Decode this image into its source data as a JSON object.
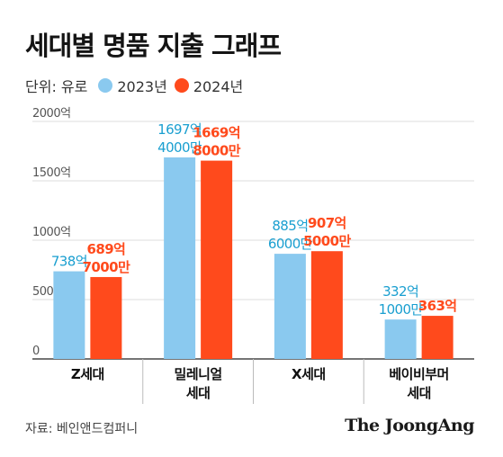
{
  "title": "세대별 명품 지출 그래프",
  "legend": {
    "unit_label": "단위: 유로",
    "items": [
      {
        "label": "2023년",
        "color": "#8ac9ef"
      },
      {
        "label": "2024년",
        "color": "#ff4a1c"
      }
    ]
  },
  "source": "자료: 베인앤드컴퍼니",
  "brand": "The JoongAng",
  "colors": {
    "v2023": "#8ac9ef",
    "v2024": "#ff4a1c",
    "label2023": "#1a9fd0",
    "label2024": "#ff4a1c"
  },
  "chart_data": {
    "type": "bar",
    "categories": [
      "Z세대",
      "밀레니얼 세대",
      "X세대",
      "베이비부머 세대"
    ],
    "series": [
      {
        "name": "2023년",
        "values": [
          738,
          1697.4,
          885.6,
          332.1
        ],
        "labels": [
          [
            "738억"
          ],
          [
            "1697억",
            "4000만"
          ],
          [
            "885억",
            "6000만"
          ],
          [
            "332억",
            "1000만"
          ]
        ]
      },
      {
        "name": "2024년",
        "values": [
          689.7,
          1669.8,
          907.5,
          363
        ],
        "labels": [
          [
            "689억",
            "7000만"
          ],
          [
            "1669억",
            "8000만"
          ],
          [
            "907억",
            "5000만"
          ],
          [
            "363억"
          ]
        ]
      }
    ],
    "category_lines": [
      [
        "Z세대"
      ],
      [
        "밀레니얼",
        "세대"
      ],
      [
        "X세대"
      ],
      [
        "베이비부머",
        "세대"
      ]
    ],
    "yticks": [
      0,
      500,
      1000,
      1500,
      2000
    ],
    "ytick_labels": [
      "0",
      "500억",
      "1000억",
      "1500억",
      "2000억"
    ],
    "ylim": [
      0,
      2000
    ],
    "xlabel": "",
    "ylabel": "",
    "grid": true
  }
}
